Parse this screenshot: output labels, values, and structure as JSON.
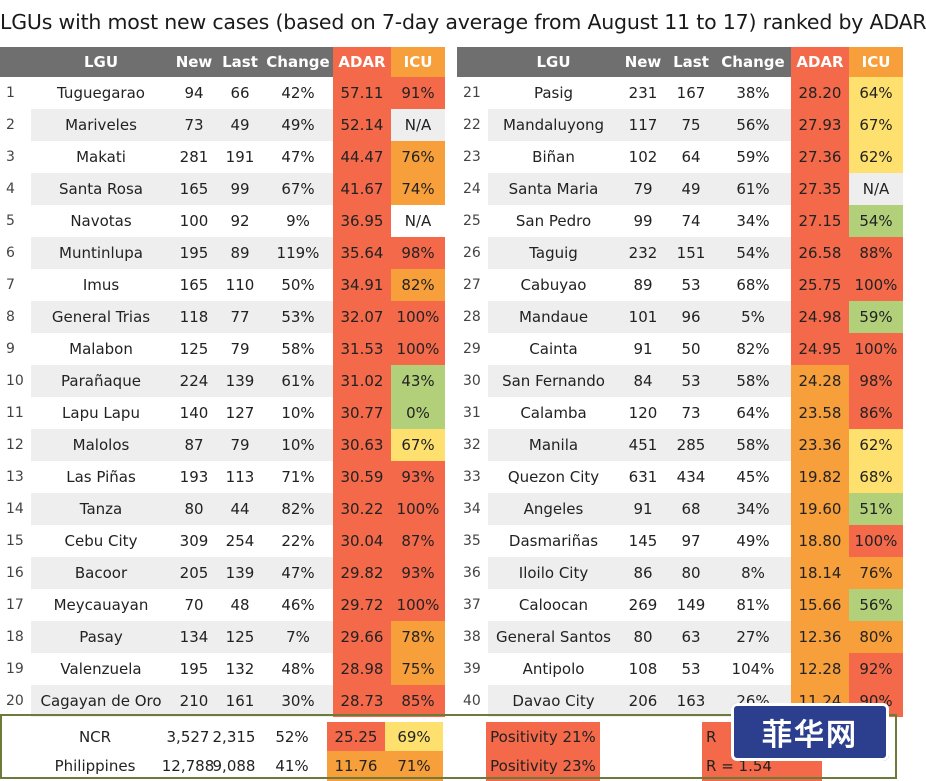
{
  "title": "LGUs with most new cases (based on 7-day average from August 11 to 17) ranked by ADAR",
  "headers": {
    "lgu": "LGU",
    "new": "New",
    "last": "Last",
    "change": "Change",
    "adar": "ADAR",
    "icu": "ICU"
  },
  "colors": {
    "red": "#f4694a",
    "orange": "#f79f3a",
    "amber": "#fbbf3f",
    "yellow": "#fde06e",
    "green": "#b2d07a",
    "header": "#6f6f6f",
    "frame": "#6c7b3a",
    "watermark": "#2c3f8f"
  },
  "left": [
    {
      "rank": "1",
      "lgu": "Tuguegarao",
      "new": "94",
      "last": "66",
      "change": "42%",
      "adar": "57.11",
      "icu": "91%",
      "adar_color": "red",
      "icu_color": "red"
    },
    {
      "rank": "2",
      "lgu": "Mariveles",
      "new": "73",
      "last": "49",
      "change": "49%",
      "adar": "52.14",
      "icu": "N/A",
      "adar_color": "red",
      "icu_color": "none"
    },
    {
      "rank": "3",
      "lgu": "Makati",
      "new": "281",
      "last": "191",
      "change": "47%",
      "adar": "44.47",
      "icu": "76%",
      "adar_color": "red",
      "icu_color": "orange"
    },
    {
      "rank": "4",
      "lgu": "Santa Rosa",
      "new": "165",
      "last": "99",
      "change": "67%",
      "adar": "41.67",
      "icu": "74%",
      "adar_color": "red",
      "icu_color": "orange"
    },
    {
      "rank": "5",
      "lgu": "Navotas",
      "new": "100",
      "last": "92",
      "change": "9%",
      "adar": "36.95",
      "icu": "N/A",
      "adar_color": "red",
      "icu_color": "none"
    },
    {
      "rank": "6",
      "lgu": "Muntinlupa",
      "new": "195",
      "last": "89",
      "change": "119%",
      "adar": "35.64",
      "icu": "98%",
      "adar_color": "red",
      "icu_color": "red"
    },
    {
      "rank": "7",
      "lgu": "Imus",
      "new": "165",
      "last": "110",
      "change": "50%",
      "adar": "34.91",
      "icu": "82%",
      "adar_color": "red",
      "icu_color": "orange"
    },
    {
      "rank": "8",
      "lgu": "General Trias",
      "new": "118",
      "last": "77",
      "change": "53%",
      "adar": "32.07",
      "icu": "100%",
      "adar_color": "red",
      "icu_color": "red"
    },
    {
      "rank": "9",
      "lgu": "Malabon",
      "new": "125",
      "last": "79",
      "change": "58%",
      "adar": "31.53",
      "icu": "100%",
      "adar_color": "red",
      "icu_color": "red"
    },
    {
      "rank": "10",
      "lgu": "Parañaque",
      "new": "224",
      "last": "139",
      "change": "61%",
      "adar": "31.02",
      "icu": "43%",
      "adar_color": "red",
      "icu_color": "green"
    },
    {
      "rank": "11",
      "lgu": "Lapu Lapu",
      "new": "140",
      "last": "127",
      "change": "10%",
      "adar": "30.77",
      "icu": "0%",
      "adar_color": "red",
      "icu_color": "green"
    },
    {
      "rank": "12",
      "lgu": "Malolos",
      "new": "87",
      "last": "79",
      "change": "10%",
      "adar": "30.63",
      "icu": "67%",
      "adar_color": "red",
      "icu_color": "yellow"
    },
    {
      "rank": "13",
      "lgu": "Las Piñas",
      "new": "193",
      "last": "113",
      "change": "71%",
      "adar": "30.59",
      "icu": "93%",
      "adar_color": "red",
      "icu_color": "red"
    },
    {
      "rank": "14",
      "lgu": "Tanza",
      "new": "80",
      "last": "44",
      "change": "82%",
      "adar": "30.22",
      "icu": "100%",
      "adar_color": "red",
      "icu_color": "red"
    },
    {
      "rank": "15",
      "lgu": "Cebu City",
      "new": "309",
      "last": "254",
      "change": "22%",
      "adar": "30.04",
      "icu": "87%",
      "adar_color": "red",
      "icu_color": "red"
    },
    {
      "rank": "16",
      "lgu": "Bacoor",
      "new": "205",
      "last": "139",
      "change": "47%",
      "adar": "29.82",
      "icu": "93%",
      "adar_color": "red",
      "icu_color": "red"
    },
    {
      "rank": "17",
      "lgu": "Meycauayan",
      "new": "70",
      "last": "48",
      "change": "46%",
      "adar": "29.72",
      "icu": "100%",
      "adar_color": "red",
      "icu_color": "red"
    },
    {
      "rank": "18",
      "lgu": "Pasay",
      "new": "134",
      "last": "125",
      "change": "7%",
      "adar": "29.66",
      "icu": "78%",
      "adar_color": "red",
      "icu_color": "orange"
    },
    {
      "rank": "19",
      "lgu": "Valenzuela",
      "new": "195",
      "last": "132",
      "change": "48%",
      "adar": "28.98",
      "icu": "75%",
      "adar_color": "red",
      "icu_color": "orange"
    },
    {
      "rank": "20",
      "lgu": "Cagayan de Oro",
      "new": "210",
      "last": "161",
      "change": "30%",
      "adar": "28.73",
      "icu": "85%",
      "adar_color": "red",
      "icu_color": "red"
    }
  ],
  "right": [
    {
      "rank": "21",
      "lgu": "Pasig",
      "new": "231",
      "last": "167",
      "change": "38%",
      "adar": "28.20",
      "icu": "64%",
      "adar_color": "red",
      "icu_color": "yellow"
    },
    {
      "rank": "22",
      "lgu": "Mandaluyong",
      "new": "117",
      "last": "75",
      "change": "56%",
      "adar": "27.93",
      "icu": "67%",
      "adar_color": "red",
      "icu_color": "yellow"
    },
    {
      "rank": "23",
      "lgu": "Biñan",
      "new": "102",
      "last": "64",
      "change": "59%",
      "adar": "27.36",
      "icu": "62%",
      "adar_color": "red",
      "icu_color": "yellow"
    },
    {
      "rank": "24",
      "lgu": "Santa Maria",
      "new": "79",
      "last": "49",
      "change": "61%",
      "adar": "27.35",
      "icu": "N/A",
      "adar_color": "red",
      "icu_color": "none"
    },
    {
      "rank": "25",
      "lgu": "San Pedro",
      "new": "99",
      "last": "74",
      "change": "34%",
      "adar": "27.15",
      "icu": "54%",
      "adar_color": "red",
      "icu_color": "green"
    },
    {
      "rank": "26",
      "lgu": "Taguig",
      "new": "232",
      "last": "151",
      "change": "54%",
      "adar": "26.58",
      "icu": "88%",
      "adar_color": "red",
      "icu_color": "red"
    },
    {
      "rank": "27",
      "lgu": "Cabuyao",
      "new": "89",
      "last": "53",
      "change": "68%",
      "adar": "25.75",
      "icu": "100%",
      "adar_color": "red",
      "icu_color": "red"
    },
    {
      "rank": "28",
      "lgu": "Mandaue",
      "new": "101",
      "last": "96",
      "change": "5%",
      "adar": "24.98",
      "icu": "59%",
      "adar_color": "red",
      "icu_color": "green"
    },
    {
      "rank": "29",
      "lgu": "Cainta",
      "new": "91",
      "last": "50",
      "change": "82%",
      "adar": "24.95",
      "icu": "100%",
      "adar_color": "red",
      "icu_color": "red"
    },
    {
      "rank": "30",
      "lgu": "San Fernando",
      "new": "84",
      "last": "53",
      "change": "58%",
      "adar": "24.28",
      "icu": "98%",
      "adar_color": "orange",
      "icu_color": "red"
    },
    {
      "rank": "31",
      "lgu": "Calamba",
      "new": "120",
      "last": "73",
      "change": "64%",
      "adar": "23.58",
      "icu": "86%",
      "adar_color": "orange",
      "icu_color": "red"
    },
    {
      "rank": "32",
      "lgu": "Manila",
      "new": "451",
      "last": "285",
      "change": "58%",
      "adar": "23.36",
      "icu": "62%",
      "adar_color": "orange",
      "icu_color": "yellow"
    },
    {
      "rank": "33",
      "lgu": "Quezon City",
      "new": "631",
      "last": "434",
      "change": "45%",
      "adar": "19.82",
      "icu": "68%",
      "adar_color": "orange",
      "icu_color": "yellow"
    },
    {
      "rank": "34",
      "lgu": "Angeles",
      "new": "91",
      "last": "68",
      "change": "34%",
      "adar": "19.60",
      "icu": "51%",
      "adar_color": "orange",
      "icu_color": "green"
    },
    {
      "rank": "35",
      "lgu": "Dasmariñas",
      "new": "145",
      "last": "97",
      "change": "49%",
      "adar": "18.80",
      "icu": "100%",
      "adar_color": "orange",
      "icu_color": "red"
    },
    {
      "rank": "36",
      "lgu": "Iloilo City",
      "new": "86",
      "last": "80",
      "change": "8%",
      "adar": "18.14",
      "icu": "76%",
      "adar_color": "orange",
      "icu_color": "orange"
    },
    {
      "rank": "37",
      "lgu": "Caloocan",
      "new": "269",
      "last": "149",
      "change": "81%",
      "adar": "15.66",
      "icu": "56%",
      "adar_color": "orange",
      "icu_color": "green"
    },
    {
      "rank": "38",
      "lgu": "General Santos",
      "new": "80",
      "last": "63",
      "change": "27%",
      "adar": "12.36",
      "icu": "80%",
      "adar_color": "orange",
      "icu_color": "orange"
    },
    {
      "rank": "39",
      "lgu": "Antipolo",
      "new": "108",
      "last": "53",
      "change": "104%",
      "adar": "12.28",
      "icu": "92%",
      "adar_color": "orange",
      "icu_color": "red"
    },
    {
      "rank": "40",
      "lgu": "Davao City",
      "new": "206",
      "last": "163",
      "change": "26%",
      "adar": "11.24",
      "icu": "90%",
      "adar_color": "orange",
      "icu_color": "red"
    }
  ],
  "summary": [
    {
      "lgu": "NCR",
      "new": "3,527",
      "last": "2,315",
      "change": "52%",
      "adar": "25.25",
      "icu": "69%",
      "adar_color": "red",
      "icu_color": "yellow",
      "positivity": "Positivity 21%",
      "r": "R"
    },
    {
      "lgu": "Philippines",
      "new": "12,788",
      "last": "9,088",
      "change": "41%",
      "adar": "11.76",
      "icu": "71%",
      "adar_color": "orange",
      "icu_color": "orange",
      "positivity": "Positivity 23%",
      "r": "R = 1.54"
    }
  ],
  "watermark": "菲华网"
}
